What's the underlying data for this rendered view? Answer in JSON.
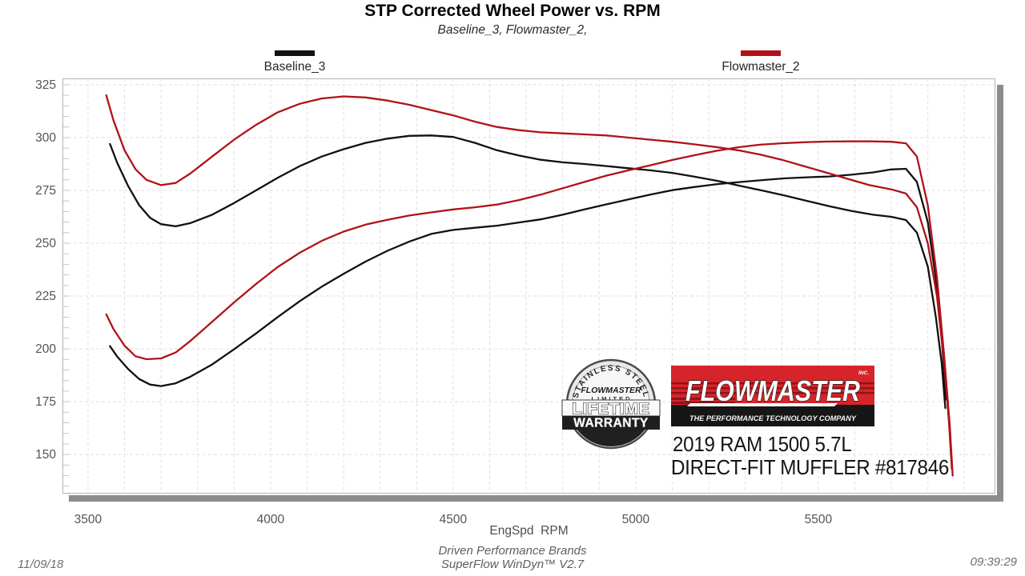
{
  "header": {
    "title": "STP Corrected Wheel Power vs. RPM",
    "subtitle": "Baseline_3, Flowmaster_2,"
  },
  "legend": [
    {
      "label": "Baseline_3",
      "color": "#111111"
    },
    {
      "label": "Flowmaster_2",
      "color": "#b01219"
    }
  ],
  "chart_data": {
    "type": "line",
    "title": "STP Corrected Wheel Power vs. RPM",
    "xlabel": "EngSpd  RPM",
    "ylabel": "",
    "x_ticks": [
      3500,
      4000,
      4500,
      5000,
      5500
    ],
    "y_ticks": [
      150,
      175,
      200,
      225,
      250,
      275,
      300,
      325
    ],
    "x_range": [
      3430,
      5985
    ],
    "y_range": [
      131.5,
      328
    ],
    "x_minor_step": 100,
    "y_minor_step": 5,
    "y_major_step": 25,
    "grid": "on",
    "grid_color": "#e3e0e0",
    "axis_color": "#b3b3b3",
    "legend_position": "top",
    "series": [
      {
        "name": "Baseline_3 torque",
        "run": "Baseline_3",
        "quantity": "torque",
        "color": "#111111",
        "points": [
          [
            3560,
            297
          ],
          [
            3580,
            288
          ],
          [
            3610,
            277
          ],
          [
            3640,
            268
          ],
          [
            3670,
            262
          ],
          [
            3700,
            259
          ],
          [
            3740,
            258
          ],
          [
            3780,
            259.5
          ],
          [
            3840,
            263.5
          ],
          [
            3900,
            269
          ],
          [
            3960,
            275
          ],
          [
            4020,
            281
          ],
          [
            4080,
            286.5
          ],
          [
            4140,
            291
          ],
          [
            4200,
            294.5
          ],
          [
            4260,
            297.5
          ],
          [
            4320,
            299.5
          ],
          [
            4380,
            300.8
          ],
          [
            4440,
            301
          ],
          [
            4500,
            300.3
          ],
          [
            4560,
            297.5
          ],
          [
            4620,
            294
          ],
          [
            4680,
            291.5
          ],
          [
            4740,
            289.5
          ],
          [
            4800,
            288.3
          ],
          [
            4860,
            287.5
          ],
          [
            4920,
            286.5
          ],
          [
            4980,
            285.5
          ],
          [
            5040,
            284.5
          ],
          [
            5100,
            283.3
          ],
          [
            5160,
            281.5
          ],
          [
            5230,
            279.3
          ],
          [
            5290,
            277
          ],
          [
            5350,
            274.8
          ],
          [
            5410,
            272.5
          ],
          [
            5470,
            270
          ],
          [
            5530,
            267.5
          ],
          [
            5590,
            265.3
          ],
          [
            5650,
            263.5
          ],
          [
            5700,
            262.5
          ],
          [
            5740,
            261
          ],
          [
            5770,
            255
          ],
          [
            5800,
            239
          ],
          [
            5822,
            215
          ],
          [
            5838,
            193
          ],
          [
            5848,
            172
          ]
        ]
      },
      {
        "name": "Baseline_3 power",
        "run": "Baseline_3",
        "quantity": "power",
        "color": "#111111",
        "points": [
          [
            3560,
            201.3
          ],
          [
            3580,
            196.3
          ],
          [
            3610,
            190.4
          ],
          [
            3640,
            185.7
          ],
          [
            3670,
            183.1
          ],
          [
            3700,
            182.4
          ],
          [
            3740,
            183.7
          ],
          [
            3780,
            186.8
          ],
          [
            3840,
            192.6
          ],
          [
            3900,
            199.8
          ],
          [
            3960,
            207.3
          ],
          [
            4020,
            215.1
          ],
          [
            4080,
            222.6
          ],
          [
            4140,
            229.4
          ],
          [
            4200,
            235.5
          ],
          [
            4260,
            241.3
          ],
          [
            4320,
            246.4
          ],
          [
            4380,
            250.8
          ],
          [
            4440,
            254.4
          ],
          [
            4500,
            256.3
          ],
          [
            4560,
            257.3
          ],
          [
            4620,
            258.3
          ],
          [
            4680,
            259.8
          ],
          [
            4740,
            261.3
          ],
          [
            4800,
            263.5
          ],
          [
            4860,
            266
          ],
          [
            4920,
            268.4
          ],
          [
            4980,
            270.7
          ],
          [
            5040,
            273
          ],
          [
            5100,
            275.1
          ],
          [
            5160,
            276.6
          ],
          [
            5230,
            278.1
          ],
          [
            5290,
            279
          ],
          [
            5350,
            279.9
          ],
          [
            5410,
            280.7
          ],
          [
            5470,
            281.2
          ],
          [
            5530,
            281.6
          ],
          [
            5590,
            282.4
          ],
          [
            5650,
            283.5
          ],
          [
            5700,
            284.9
          ],
          [
            5740,
            285.2
          ],
          [
            5770,
            279
          ],
          [
            5800,
            260
          ],
          [
            5822,
            233
          ],
          [
            5838,
            205
          ],
          [
            5850,
            176
          ]
        ]
      },
      {
        "name": "Flowmaster_2 torque",
        "run": "Flowmaster_2",
        "quantity": "torque",
        "color": "#b01219",
        "points": [
          [
            3550,
            320
          ],
          [
            3570,
            308
          ],
          [
            3600,
            294
          ],
          [
            3630,
            285
          ],
          [
            3660,
            280
          ],
          [
            3700,
            277.5
          ],
          [
            3740,
            278.5
          ],
          [
            3780,
            283
          ],
          [
            3840,
            291
          ],
          [
            3900,
            299
          ],
          [
            3960,
            306
          ],
          [
            4020,
            312
          ],
          [
            4080,
            316
          ],
          [
            4140,
            318.5
          ],
          [
            4200,
            319.5
          ],
          [
            4260,
            319
          ],
          [
            4320,
            317.5
          ],
          [
            4380,
            315.5
          ],
          [
            4440,
            313
          ],
          [
            4500,
            310.5
          ],
          [
            4560,
            307.5
          ],
          [
            4620,
            305
          ],
          [
            4680,
            303.5
          ],
          [
            4740,
            302.5
          ],
          [
            4800,
            302
          ],
          [
            4860,
            301.5
          ],
          [
            4920,
            301
          ],
          [
            4980,
            300
          ],
          [
            5040,
            299
          ],
          [
            5100,
            298
          ],
          [
            5160,
            296.8
          ],
          [
            5220,
            295.5
          ],
          [
            5280,
            294
          ],
          [
            5340,
            292
          ],
          [
            5400,
            289.5
          ],
          [
            5460,
            286.5
          ],
          [
            5520,
            283.5
          ],
          [
            5580,
            280.5
          ],
          [
            5640,
            277.5
          ],
          [
            5700,
            275.5
          ],
          [
            5740,
            273.5
          ],
          [
            5770,
            267
          ],
          [
            5800,
            250
          ],
          [
            5825,
            225
          ],
          [
            5845,
            193
          ],
          [
            5858,
            165
          ],
          [
            5866,
            143
          ]
        ]
      },
      {
        "name": "Flowmaster_2 power",
        "run": "Flowmaster_2",
        "quantity": "power",
        "color": "#b01219",
        "points": [
          [
            3550,
            216.3
          ],
          [
            3570,
            209.3
          ],
          [
            3600,
            201.5
          ],
          [
            3630,
            196.5
          ],
          [
            3660,
            195.1
          ],
          [
            3700,
            195.5
          ],
          [
            3740,
            198.3
          ],
          [
            3780,
            203.7
          ],
          [
            3840,
            212.8
          ],
          [
            3900,
            222
          ],
          [
            3960,
            230.7
          ],
          [
            4020,
            238.8
          ],
          [
            4080,
            245.5
          ],
          [
            4140,
            251.1
          ],
          [
            4200,
            255.5
          ],
          [
            4260,
            258.8
          ],
          [
            4320,
            261.1
          ],
          [
            4380,
            263.1
          ],
          [
            4440,
            264.6
          ],
          [
            4500,
            266
          ],
          [
            4560,
            267
          ],
          [
            4620,
            268.3
          ],
          [
            4680,
            270.4
          ],
          [
            4740,
            273
          ],
          [
            4800,
            276
          ],
          [
            4860,
            279
          ],
          [
            4920,
            282
          ],
          [
            4980,
            284.5
          ],
          [
            5040,
            286.9
          ],
          [
            5100,
            289.4
          ],
          [
            5160,
            291.6
          ],
          [
            5220,
            293.7
          ],
          [
            5280,
            295.4
          ],
          [
            5340,
            296.6
          ],
          [
            5400,
            297.3
          ],
          [
            5460,
            297.8
          ],
          [
            5520,
            298.1
          ],
          [
            5580,
            298.2
          ],
          [
            5640,
            298.2
          ],
          [
            5700,
            298
          ],
          [
            5740,
            297.3
          ],
          [
            5770,
            291
          ],
          [
            5800,
            268
          ],
          [
            5825,
            234
          ],
          [
            5845,
            196
          ],
          [
            5860,
            164
          ],
          [
            5868,
            140
          ]
        ]
      }
    ]
  },
  "branding": {
    "badge": {
      "arc_text": "STAINLESS STEEL",
      "brand": "FLOWMASTER",
      "limited": "LIMITED",
      "lifetime": "LIFETIME",
      "warranty": "WARRANTY"
    },
    "logo": {
      "name": "FLOWMASTER",
      "inc": "INC.",
      "tagline": "THE PERFORMANCE TECHNOLOGY COMPANY",
      "red": "#d7232a"
    },
    "vehicle_line1": "2019 RAM 1500 5.7L",
    "vehicle_line2": "DIRECT-FIT MUFFLER #817846"
  },
  "footer": {
    "date": "11/09/18",
    "center_line1": "Driven Performance Brands",
    "center_line2": "SuperFlow WinDyn™ V2.7",
    "time": "09:39:29"
  }
}
